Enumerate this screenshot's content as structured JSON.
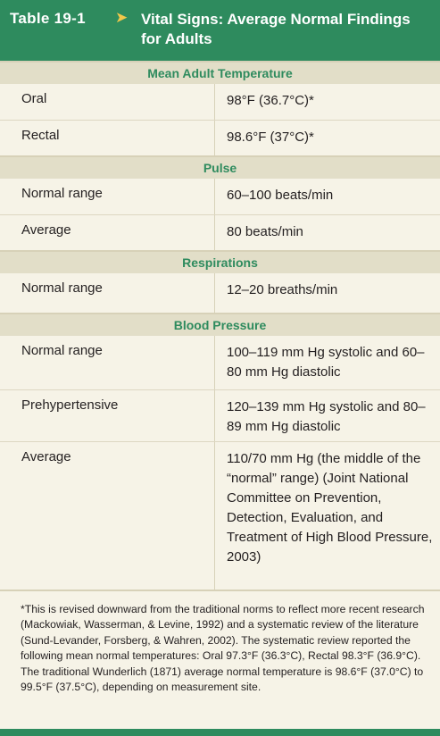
{
  "header": {
    "table_label": "Table 19-1",
    "arrow": "➤",
    "title": "Vital Signs: Average Normal Findings for Adults"
  },
  "sections": {
    "temperature": {
      "heading": "Mean Adult Temperature",
      "rows": [
        {
          "label": "Oral",
          "value": "98°F (36.7°C)*"
        },
        {
          "label": "Rectal",
          "value": "98.6°F (37°C)*"
        }
      ]
    },
    "pulse": {
      "heading": "Pulse",
      "rows": [
        {
          "label": "Normal range",
          "value": "60–100 beats/min"
        },
        {
          "label": "Average",
          "value": "80 beats/min"
        }
      ]
    },
    "respirations": {
      "heading": "Respirations",
      "rows": [
        {
          "label": "Normal range",
          "value": "12–20 breaths/min"
        }
      ]
    },
    "blood_pressure": {
      "heading": "Blood Pressure",
      "rows": [
        {
          "label": "Normal range",
          "value": "100–119 mm Hg systolic and 60–80 mm Hg diastolic"
        },
        {
          "label": "Prehypertensive",
          "value": "120–139 mm Hg systolic and 80–89 mm Hg diastolic"
        },
        {
          "label": "Average",
          "value": "110/70 mm Hg (the middle of the “normal” range) (Joint National Committee on Prevention, Detection, Evaluation, and Treatment of High Blood Pressure, 2003)"
        }
      ]
    }
  },
  "footnote": "*This is revised downward from the traditional norms to reflect more recent research (Mackowiak, Wasserman, & Levine, 1992) and a systematic review of the literature (Sund-Levander, Forsberg, & Wahren, 2002). The systematic review reported the following mean normal temperatures: Oral 97.3°F (36.3°C), Rectal 98.3°F (36.9°C). The traditional Wunderlich (1871) average normal temperature is 98.6°F (37.0°C) to 99.5°F (37.5°C), depending on measurement site.",
  "colors": {
    "accent": "#2e8b5e",
    "arrow": "#f1c84b",
    "background": "#f6f3e7",
    "section_band": "#e2dec8"
  }
}
